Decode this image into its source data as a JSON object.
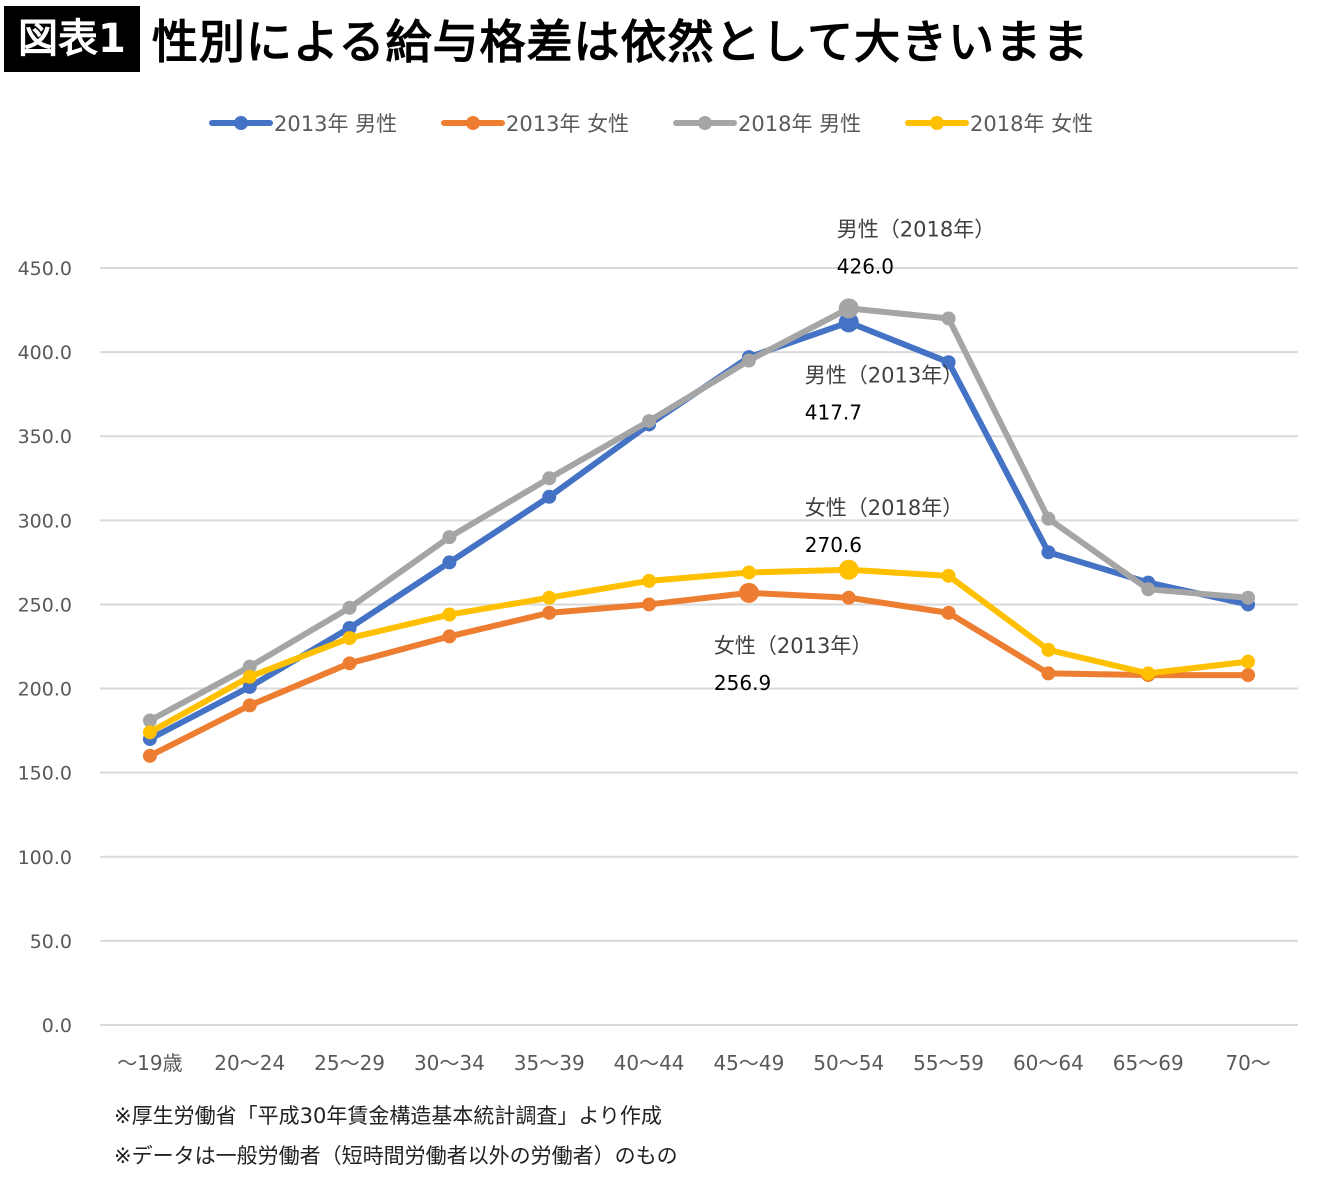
{
  "header": {
    "badge": "図表1",
    "title": "性別による給与格差は依然として大きいまま"
  },
  "chart_data": {
    "type": "line",
    "categories": [
      "～19歳",
      "20～24",
      "25～29",
      "30～34",
      "35～39",
      "40～44",
      "45～49",
      "50～54",
      "55～59",
      "60～64",
      "65～69",
      "70～"
    ],
    "ylim": [
      0,
      450
    ],
    "yticks": [
      "0.0",
      "50.0",
      "100.0",
      "150.0",
      "200.0",
      "250.0",
      "300.0",
      "350.0",
      "400.0",
      "450.0"
    ],
    "grid": true,
    "legend_position": "top",
    "series": [
      {
        "name": "2013年 男性",
        "color": "#4472C4",
        "values": [
          170,
          201,
          236,
          275,
          314,
          357,
          397,
          417.7,
          394,
          281,
          263,
          250
        ]
      },
      {
        "name": "2013年 女性",
        "color": "#ED7D31",
        "values": [
          160,
          190,
          215,
          231,
          245,
          250,
          256.9,
          254,
          245,
          209,
          208,
          208
        ]
      },
      {
        "name": "2018年 男性",
        "color": "#A5A5A5",
        "values": [
          181,
          213,
          248,
          290,
          325,
          359,
          395,
          426.0,
          420,
          301,
          259,
          254
        ]
      },
      {
        "name": "2018年 女性",
        "color": "#FFC000",
        "values": [
          174,
          207,
          230,
          244,
          254,
          264,
          269,
          270.6,
          267,
          223,
          209,
          216
        ]
      }
    ],
    "annotations": [
      {
        "series": 2,
        "index": 7,
        "label": "男性（2018年）",
        "value": "426.0"
      },
      {
        "series": 0,
        "index": 7,
        "label": "男性（2013年）",
        "value": "417.7"
      },
      {
        "series": 3,
        "index": 7,
        "label": "女性（2018年）",
        "value": "270.6"
      },
      {
        "series": 1,
        "index": 6,
        "label": "女性（2013年）",
        "value": "256.9"
      }
    ]
  },
  "footnotes": [
    "※厚生労働省「平成30年賃金構造基本統計調査」より作成",
    "※データは一般労働者（短時間労働者以外の労働者）のもの"
  ]
}
